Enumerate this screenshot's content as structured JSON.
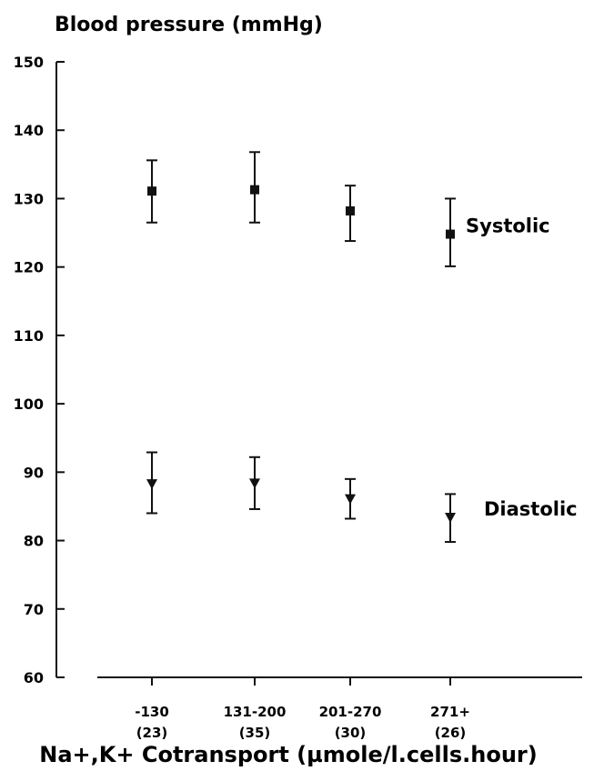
{
  "chart_data": {
    "type": "scatter",
    "title": "",
    "ylabel": "Blood pressure (mmHg)",
    "xlabel": "Na+,K+ Cotransport (µmole/l.cells.hour)",
    "ylim": [
      60,
      150
    ],
    "yticks": [
      60,
      70,
      80,
      90,
      100,
      110,
      120,
      130,
      140,
      150
    ],
    "categories": [
      "-130",
      "131-200",
      "201-270",
      "271+"
    ],
    "category_counts": [
      "(23)",
      "(35)",
      "(30)",
      "(26)"
    ],
    "grid": false,
    "series": [
      {
        "name": "Systolic",
        "marker": "square",
        "values": [
          131.1,
          131.3,
          128.2,
          124.8
        ],
        "lower": [
          126.5,
          126.5,
          123.8,
          120.1
        ],
        "upper": [
          135.6,
          136.8,
          131.9,
          130.0
        ]
      },
      {
        "name": "Diastolic",
        "marker": "triangle-down",
        "values": [
          88.3,
          88.4,
          86.1,
          83.4
        ],
        "lower": [
          84.0,
          84.6,
          83.2,
          79.8
        ],
        "upper": [
          92.9,
          92.2,
          89.0,
          86.8
        ]
      }
    ]
  }
}
